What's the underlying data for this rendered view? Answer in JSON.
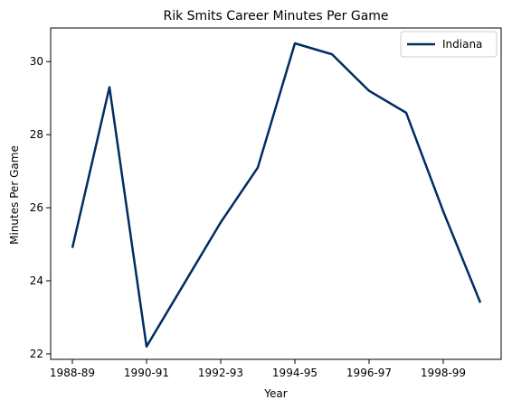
{
  "chart_data": {
    "type": "line",
    "title": "Rik Smits Career Minutes Per Game",
    "xlabel": "Year",
    "ylabel": "Minutes Per Game",
    "x": [
      "1988-89",
      "1989-90",
      "1990-91",
      "1991-92",
      "1992-93",
      "1993-94",
      "1994-95",
      "1995-96",
      "1996-97",
      "1997-98",
      "1998-99",
      "1999-00"
    ],
    "x_tick_labels": [
      "1988-89",
      "1990-91",
      "1992-93",
      "1994-95",
      "1996-97",
      "1998-99"
    ],
    "series": [
      {
        "name": "Indiana",
        "color": "#002D62",
        "values": [
          24.9,
          29.3,
          22.2,
          23.9,
          25.6,
          27.1,
          30.5,
          30.2,
          29.2,
          28.6,
          25.9,
          23.4
        ]
      }
    ],
    "ylim": [
      21.85,
      30.92
    ],
    "yticks": [
      22,
      24,
      26,
      28,
      30
    ],
    "grid": false,
    "legend_position": "upper right"
  }
}
